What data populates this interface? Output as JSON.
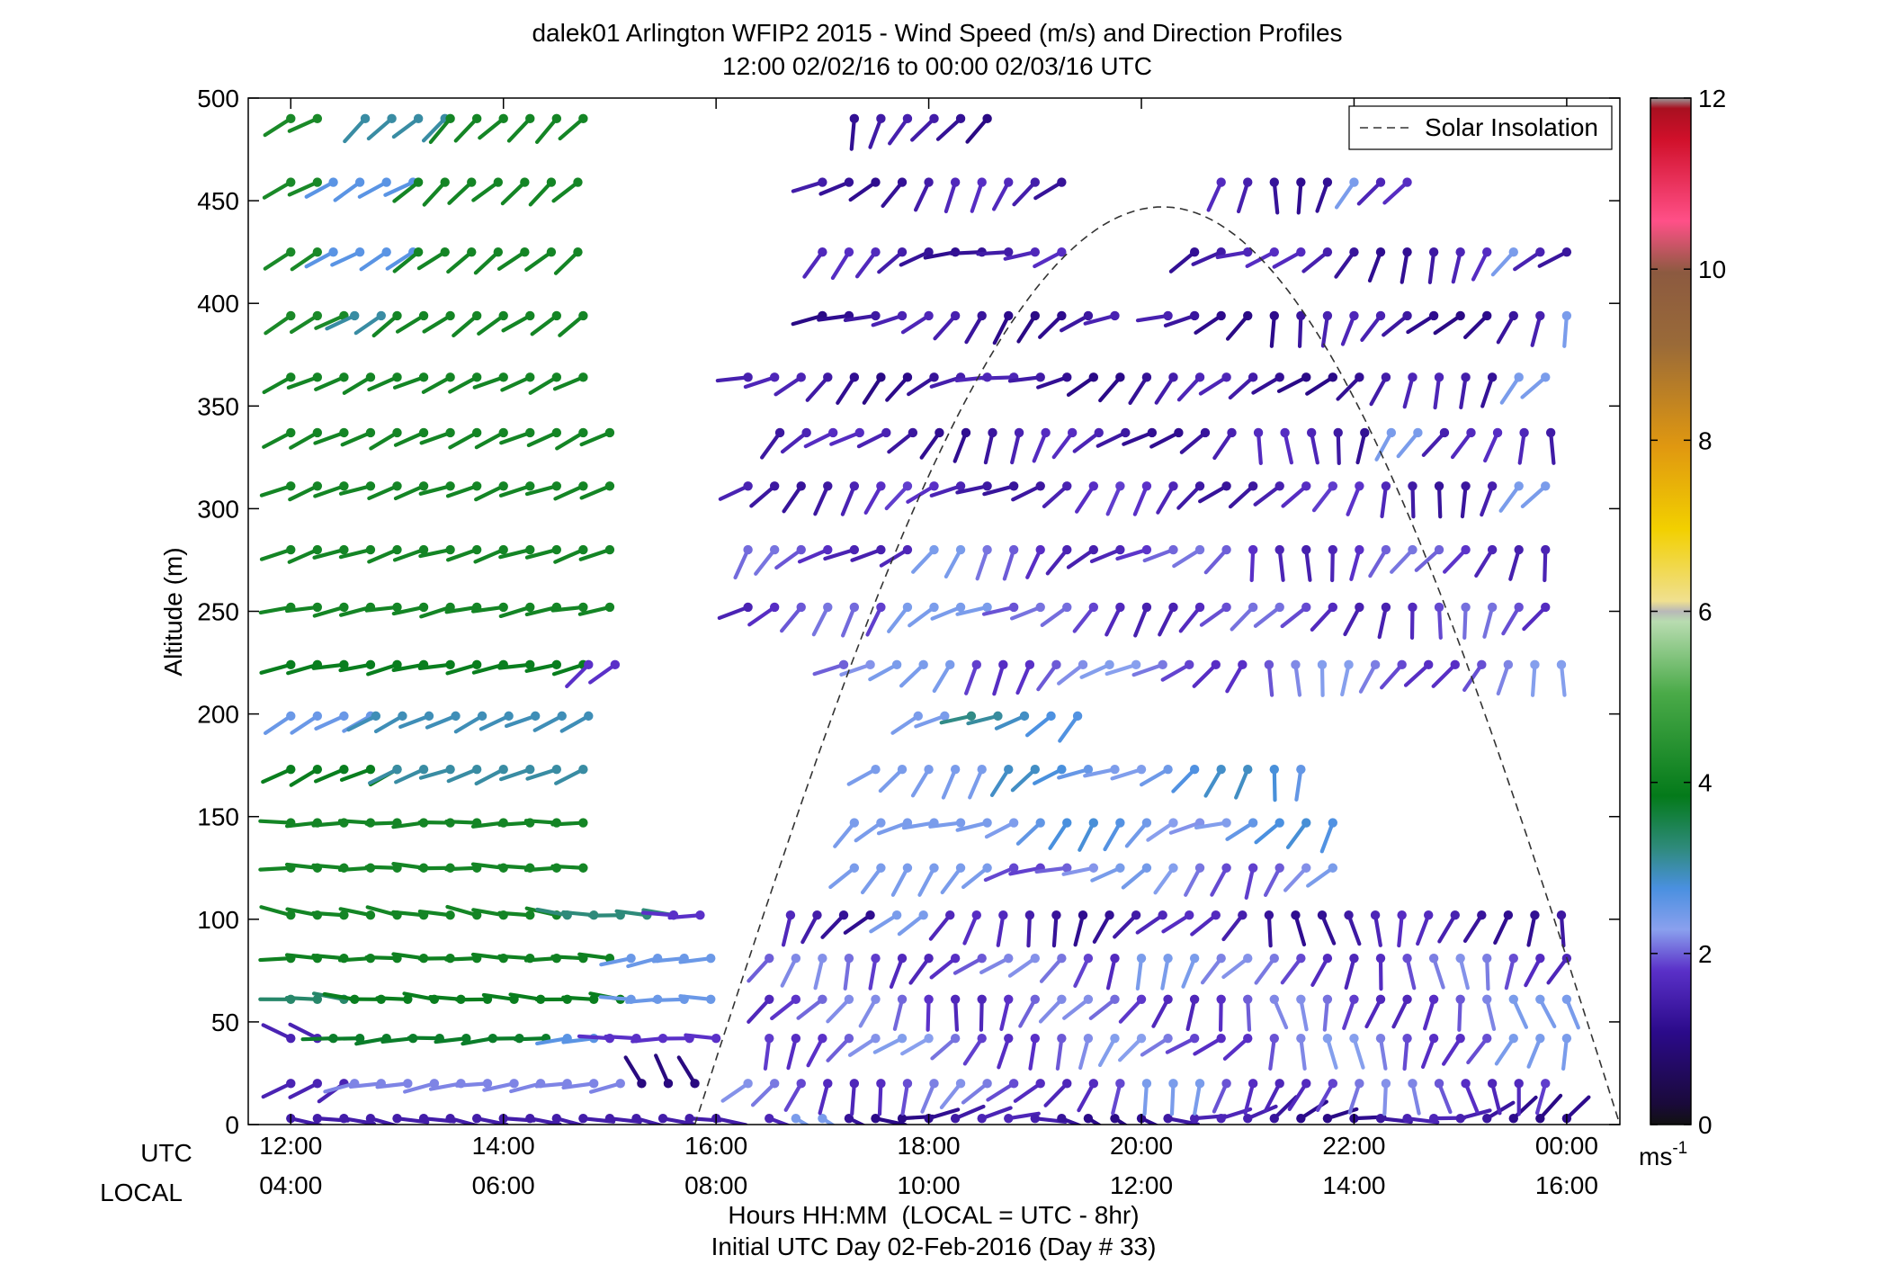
{
  "chart_data": {
    "type": "wind-barb-profile",
    "title": "dalek01 Arlington WFIP2 2015 - Wind Speed (m/s) and Direction Profiles",
    "subtitle": "12:00 02/02/16 to 00:00 02/03/16  UTC",
    "ylabel": "Altitude (m)",
    "ylim": [
      0,
      500
    ],
    "yticks": [
      0,
      50,
      100,
      150,
      200,
      250,
      300,
      350,
      400,
      450,
      500
    ],
    "xlim_hours": [
      11.6,
      24.5
    ],
    "x_axis_rows": {
      "utc_label": "UTC",
      "local_label": "LOCAL",
      "ticks_hours": [
        12,
        14,
        16,
        18,
        20,
        22,
        24
      ],
      "utc_tick_labels": [
        "12:00",
        "14:00",
        "16:00",
        "18:00",
        "20:00",
        "22:00",
        "00:00"
      ],
      "local_tick_labels": [
        "04:00",
        "06:00",
        "08:00",
        "10:00",
        "12:00",
        "14:00",
        "16:00"
      ]
    },
    "xlabel": "Hours HH:MM  (LOCAL = UTC - 8hr)",
    "xlabel2": "Initial UTC Day 02-Feb-2016 (Day # 33)",
    "legend": {
      "label": "Solar Insolation",
      "position": "top-right"
    },
    "colorbar": {
      "range": [
        0,
        12
      ],
      "ticks": [
        0,
        2,
        4,
        6,
        8,
        10,
        12
      ],
      "tick_labels": [
        "0",
        "2",
        "4",
        "6",
        "8",
        "10",
        "12"
      ],
      "unit_base": "ms",
      "unit_exp": "-1"
    },
    "solar_insolation": {
      "start_hour": 15.8,
      "peak_hour": 20.2,
      "end_hour": 24.5,
      "peak_altitude": 447
    },
    "levels": [
      {
        "alt": 3,
        "segments": [
          [
            12.0,
            16.0,
            1.3,
            100
          ]
        ]
      },
      {
        "alt": 20,
        "segments": [
          [
            12.0,
            12.6,
            1.4,
            240
          ],
          [
            12.6,
            15.3,
            1.9,
            260
          ],
          [
            15.3,
            15.8,
            0.9,
            330
          ]
        ]
      },
      {
        "alt": 42,
        "segments": [
          [
            12.0,
            12.4,
            1.4,
            300
          ],
          [
            12.4,
            14.6,
            3.4,
            265
          ],
          [
            14.6,
            15.0,
            2.3,
            265
          ],
          [
            15.0,
            16.0,
            1.6,
            270
          ]
        ]
      },
      {
        "alt": 61,
        "segments": [
          [
            12.0,
            12.6,
            3.0,
            275
          ],
          [
            12.6,
            15.2,
            3.6,
            275
          ],
          [
            15.2,
            16.0,
            2.2,
            270
          ]
        ]
      },
      {
        "alt": 81,
        "segments": [
          [
            12.0,
            15.2,
            3.7,
            272
          ],
          [
            15.2,
            16.0,
            2.2,
            260
          ]
        ]
      },
      {
        "alt": 102,
        "segments": [
          [
            12.0,
            14.6,
            3.8,
            280
          ],
          [
            14.6,
            15.6,
            2.9,
            275
          ],
          [
            15.6,
            16.0,
            1.6,
            270
          ]
        ]
      },
      {
        "alt": 125,
        "segments": [
          [
            12.0,
            14.9,
            3.8,
            272
          ]
        ]
      },
      {
        "alt": 147,
        "segments": [
          [
            12.0,
            14.9,
            3.8,
            268
          ]
        ]
      },
      {
        "alt": 173,
        "segments": [
          [
            12.0,
            13.0,
            3.6,
            245
          ],
          [
            13.0,
            14.9,
            2.7,
            248
          ]
        ]
      },
      {
        "alt": 199,
        "segments": [
          [
            12.0,
            12.8,
            2.2,
            240
          ],
          [
            12.8,
            14.9,
            2.6,
            245
          ]
        ]
      },
      {
        "alt": 224,
        "segments": [
          [
            12.0,
            14.8,
            3.6,
            258
          ],
          [
            14.8,
            15.2,
            1.6,
            230
          ]
        ]
      },
      {
        "alt": 252,
        "segments": [
          [
            12.0,
            15.2,
            3.8,
            258
          ]
        ]
      },
      {
        "alt": 280,
        "segments": [
          [
            12.0,
            15.2,
            3.8,
            252
          ]
        ]
      },
      {
        "alt": 311,
        "segments": [
          [
            12.0,
            15.2,
            3.8,
            250
          ]
        ]
      },
      {
        "alt": 337,
        "segments": [
          [
            12.0,
            15.2,
            3.8,
            245
          ]
        ]
      },
      {
        "alt": 364,
        "segments": [
          [
            12.0,
            14.9,
            3.8,
            245
          ]
        ]
      },
      {
        "alt": 394,
        "segments": [
          [
            12.0,
            12.6,
            3.9,
            240
          ],
          [
            12.6,
            13.0,
            2.7,
            240
          ],
          [
            13.0,
            14.9,
            3.8,
            235
          ]
        ]
      },
      {
        "alt": 425,
        "segments": [
          [
            12.0,
            12.4,
            3.9,
            240
          ],
          [
            12.4,
            13.2,
            2.3,
            240
          ],
          [
            13.2,
            14.9,
            3.8,
            232
          ]
        ]
      },
      {
        "alt": 459,
        "segments": [
          [
            12.0,
            12.4,
            3.9,
            240
          ],
          [
            12.4,
            13.2,
            2.3,
            240
          ],
          [
            13.2,
            14.9,
            3.8,
            228
          ]
        ]
      },
      {
        "alt": 490,
        "segments": [
          [
            12.0,
            12.4,
            3.9,
            240
          ],
          [
            12.7,
            13.5,
            2.7,
            228
          ],
          [
            13.5,
            14.9,
            3.8,
            225
          ]
        ]
      }
    ],
    "afternoon": {
      "start_hour": 16.3,
      "end_hour": 24.0,
      "levels": [
        {
          "alt": 3,
          "speed": 1.2,
          "dir": 95,
          "from": 16.5,
          "to": 24.0,
          "light_from": 16.6,
          "light_to": 17.0
        },
        {
          "alt": 20,
          "speed": 1.7,
          "dir": 210,
          "from": 16.3,
          "to": 24.0,
          "light_from": 19.9,
          "light_to": 20.6
        },
        {
          "alt": 42,
          "speed": 1.8,
          "dir": 215,
          "from": 16.5,
          "to": 24.0,
          "light_from": 23.4,
          "light_to": 24.0
        },
        {
          "alt": 61,
          "speed": 1.7,
          "dir": 205,
          "from": 16.5,
          "to": 24.0,
          "light_from": 23.5,
          "light_to": 24.0
        },
        {
          "alt": 81,
          "speed": 1.7,
          "dir": 215,
          "from": 16.5,
          "to": 24.0,
          "light_from": 19.8,
          "light_to": 20.6
        },
        {
          "alt": 102,
          "speed": 1.3,
          "dir": 210,
          "from": 16.7,
          "to": 24.0,
          "light_from": 17.5,
          "light_to": 18.1
        },
        {
          "alt": 125,
          "speed": 1.9,
          "dir": 235,
          "from": 17.3,
          "to": 22.0,
          "light_from": 17.3,
          "light_to": 18.6
        },
        {
          "alt": 147,
          "speed": 2.2,
          "dir": 235,
          "from": 17.3,
          "to": 22.0,
          "light_from": 17.3,
          "light_to": 18.6
        },
        {
          "alt": 173,
          "speed": 2.3,
          "dir": 230,
          "from": 17.5,
          "to": 21.6,
          "light_from": 17.5,
          "light_to": 18.6
        },
        {
          "alt": 199,
          "speed": 2.6,
          "dir": 230,
          "from": 17.9,
          "to": 19.6,
          "light_from": 17.9,
          "light_to": 18.3
        },
        {
          "alt": 224,
          "speed": 1.8,
          "dir": 225,
          "from": 17.2,
          "to": 24.0,
          "light_from": 17.6,
          "light_to": 18.4
        },
        {
          "alt": 252,
          "speed": 1.6,
          "dir": 230,
          "from": 16.3,
          "to": 24.0,
          "light_from": 17.6,
          "light_to": 18.7
        },
        {
          "alt": 280,
          "speed": 1.6,
          "dir": 225,
          "from": 16.3,
          "to": 24.0,
          "light_from": 18.0,
          "light_to": 18.5
        },
        {
          "alt": 311,
          "speed": 1.4,
          "dir": 230,
          "from": 16.3,
          "to": 24.0,
          "light_from": 23.5,
          "light_to": 24.0
        },
        {
          "alt": 337,
          "speed": 1.3,
          "dir": 220,
          "from": 16.6,
          "to": 24.0,
          "light_from": 22.3,
          "light_to": 22.6
        },
        {
          "alt": 364,
          "speed": 1.2,
          "dir": 240,
          "from": 16.3,
          "to": 24.0,
          "light_from": 23.5,
          "light_to": 23.8
        },
        {
          "alt": 394,
          "speed": 1.2,
          "dir": 235,
          "from": 17.0,
          "to": 24.0,
          "light_from": 23.8,
          "light_to": 24.0
        },
        {
          "alt": 425,
          "speed": 1.3,
          "dir": 240,
          "from": 17.0,
          "to": 24.0,
          "light_from": 23.3,
          "light_to": 23.6
        },
        {
          "alt": 459,
          "speed": 1.3,
          "dir": 225,
          "from": 17.0,
          "to": 22.6,
          "light_from": 21.8,
          "light_to": 22.0
        },
        {
          "alt": 490,
          "speed": 1.1,
          "dir": 200,
          "from": 17.3,
          "to": 18.6,
          "light_from": 0,
          "light_to": 0
        }
      ],
      "gaps": [
        {
          "alt": 125,
          "from": 22.0,
          "to": 23.3
        },
        {
          "alt": 147,
          "from": 22.0,
          "to": 23.3
        },
        {
          "alt": 173,
          "from": 21.6,
          "to": 24.0
        },
        {
          "alt": 394,
          "from": 19.9,
          "to": 20.0
        },
        {
          "alt": 425,
          "from": 19.4,
          "to": 20.3
        },
        {
          "alt": 459,
          "from": 19.4,
          "to": 20.5
        },
        {
          "alt": 490,
          "from": 18.6,
          "to": 21.3
        }
      ]
    }
  }
}
